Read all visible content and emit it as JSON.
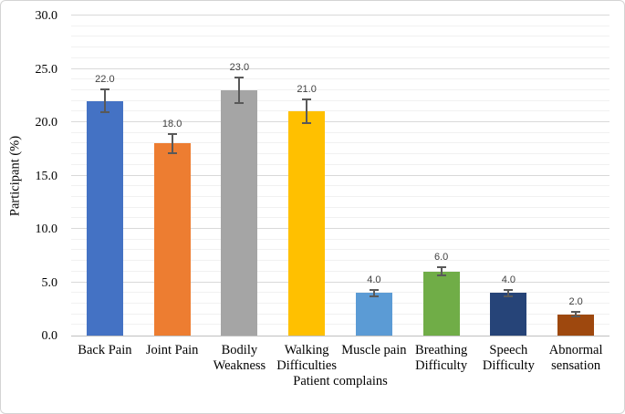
{
  "figure": {
    "background": "#FFFFFF",
    "border_color": "#D4D4D4"
  },
  "chart_data": {
    "type": "bar",
    "title": "",
    "xlabel": "Patient complains",
    "ylabel": "Participant (%)",
    "categories": [
      "Back Pain",
      "Joint Pain",
      "Bodily Weakness",
      "Walking Difficulties",
      "Muscle pain",
      "Breathing Difficulty",
      "Speech Difficulty",
      "Abnormal sensation"
    ],
    "category_lines": [
      [
        "Back Pain"
      ],
      [
        "Joint Pain"
      ],
      [
        "Bodily",
        "Weakness"
      ],
      [
        "Walking",
        "Difficulties"
      ],
      [
        "Muscle pain"
      ],
      [
        "Breathing",
        "Difficulty"
      ],
      [
        "Speech",
        "Difficulty"
      ],
      [
        "Abnormal",
        "sensation"
      ]
    ],
    "values": [
      22.0,
      18.0,
      23.0,
      21.0,
      4.0,
      6.0,
      4.0,
      2.0
    ],
    "value_labels": [
      "22.0",
      "18.0",
      "23.0",
      "21.0",
      "4.0",
      "6.0",
      "4.0",
      "2.0"
    ],
    "error_bars": [
      1.1,
      0.9,
      1.2,
      1.1,
      0.3,
      0.4,
      0.3,
      0.2
    ],
    "bar_colors": [
      "#4472C4",
      "#ED7D31",
      "#A5A5A5",
      "#FFC000",
      "#5B9BD5",
      "#70AD47",
      "#264478",
      "#9E480E"
    ],
    "ylim": [
      0,
      30
    ],
    "y_major_ticks": [
      "0.0",
      "5.0",
      "10.0",
      "15.0",
      "20.0",
      "25.0",
      "30.0"
    ],
    "y_major_step": 5,
    "y_minor_step": 1,
    "grid": "horizontal, minor every 1 (light), major every 5 (darker)",
    "legend": "none",
    "error_bar_color": "#595959",
    "gridline_minor_color": "#F1F1F1",
    "gridline_major_color": "#D9D9D9",
    "axis_line_color": "#BFBFBF",
    "data_label_color": "#404040"
  }
}
